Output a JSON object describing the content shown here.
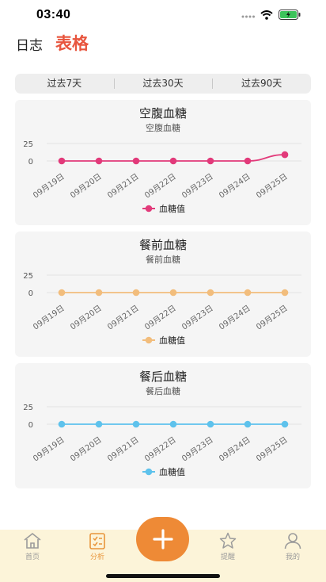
{
  "status_bar": {
    "time": "03:40"
  },
  "header": {
    "diary_label": "日志",
    "table_label": "表格"
  },
  "segments": [
    "过去7天",
    "过去30天",
    "过去90天"
  ],
  "charts": [
    {
      "title": "空腹血糖",
      "subtitle": "空腹血糖",
      "color": "#e23a7a",
      "legend": "血糖值"
    },
    {
      "title": "餐前血糖",
      "subtitle": "餐前血糖",
      "color": "#f2bd7c",
      "legend": "血糖值"
    },
    {
      "title": "餐后血糖",
      "subtitle": "餐后血糖",
      "color": "#5ec2ec",
      "legend": "血糖值"
    }
  ],
  "chart_data": [
    {
      "type": "line",
      "title": "空腹血糖",
      "categories": [
        "09月19日",
        "09月20日",
        "09月21日",
        "09月22日",
        "09月23日",
        "09月24日",
        "09月25日"
      ],
      "series": [
        {
          "name": "血糖值",
          "values": [
            0,
            0,
            0,
            0,
            0,
            0,
            9
          ]
        }
      ],
      "yticks": [
        "25",
        "0"
      ],
      "ylim": [
        0,
        25
      ]
    },
    {
      "type": "line",
      "title": "餐前血糖",
      "categories": [
        "09月19日",
        "09月20日",
        "09月21日",
        "09月22日",
        "09月23日",
        "09月24日",
        "09月25日"
      ],
      "series": [
        {
          "name": "血糖值",
          "values": [
            0,
            0,
            0,
            0,
            0,
            0,
            0
          ]
        }
      ],
      "yticks": [
        "25",
        "0"
      ],
      "ylim": [
        0,
        25
      ]
    },
    {
      "type": "line",
      "title": "餐后血糖",
      "categories": [
        "09月19日",
        "09月20日",
        "09月21日",
        "09月22日",
        "09月23日",
        "09月24日",
        "09月25日"
      ],
      "series": [
        {
          "name": "血糖值",
          "values": [
            0,
            0,
            0,
            0,
            0,
            0,
            0
          ]
        }
      ],
      "yticks": [
        "25",
        "0"
      ],
      "ylim": [
        0,
        25
      ]
    }
  ],
  "tabbar": {
    "items": [
      {
        "label": "首页",
        "icon": "home-icon"
      },
      {
        "label": "分析",
        "icon": "analysis-icon"
      },
      {
        "label": "提醒",
        "icon": "star-icon"
      },
      {
        "label": "我的",
        "icon": "profile-icon"
      }
    ],
    "active_color": "#e8953a",
    "fab_icon": "plus-icon"
  }
}
